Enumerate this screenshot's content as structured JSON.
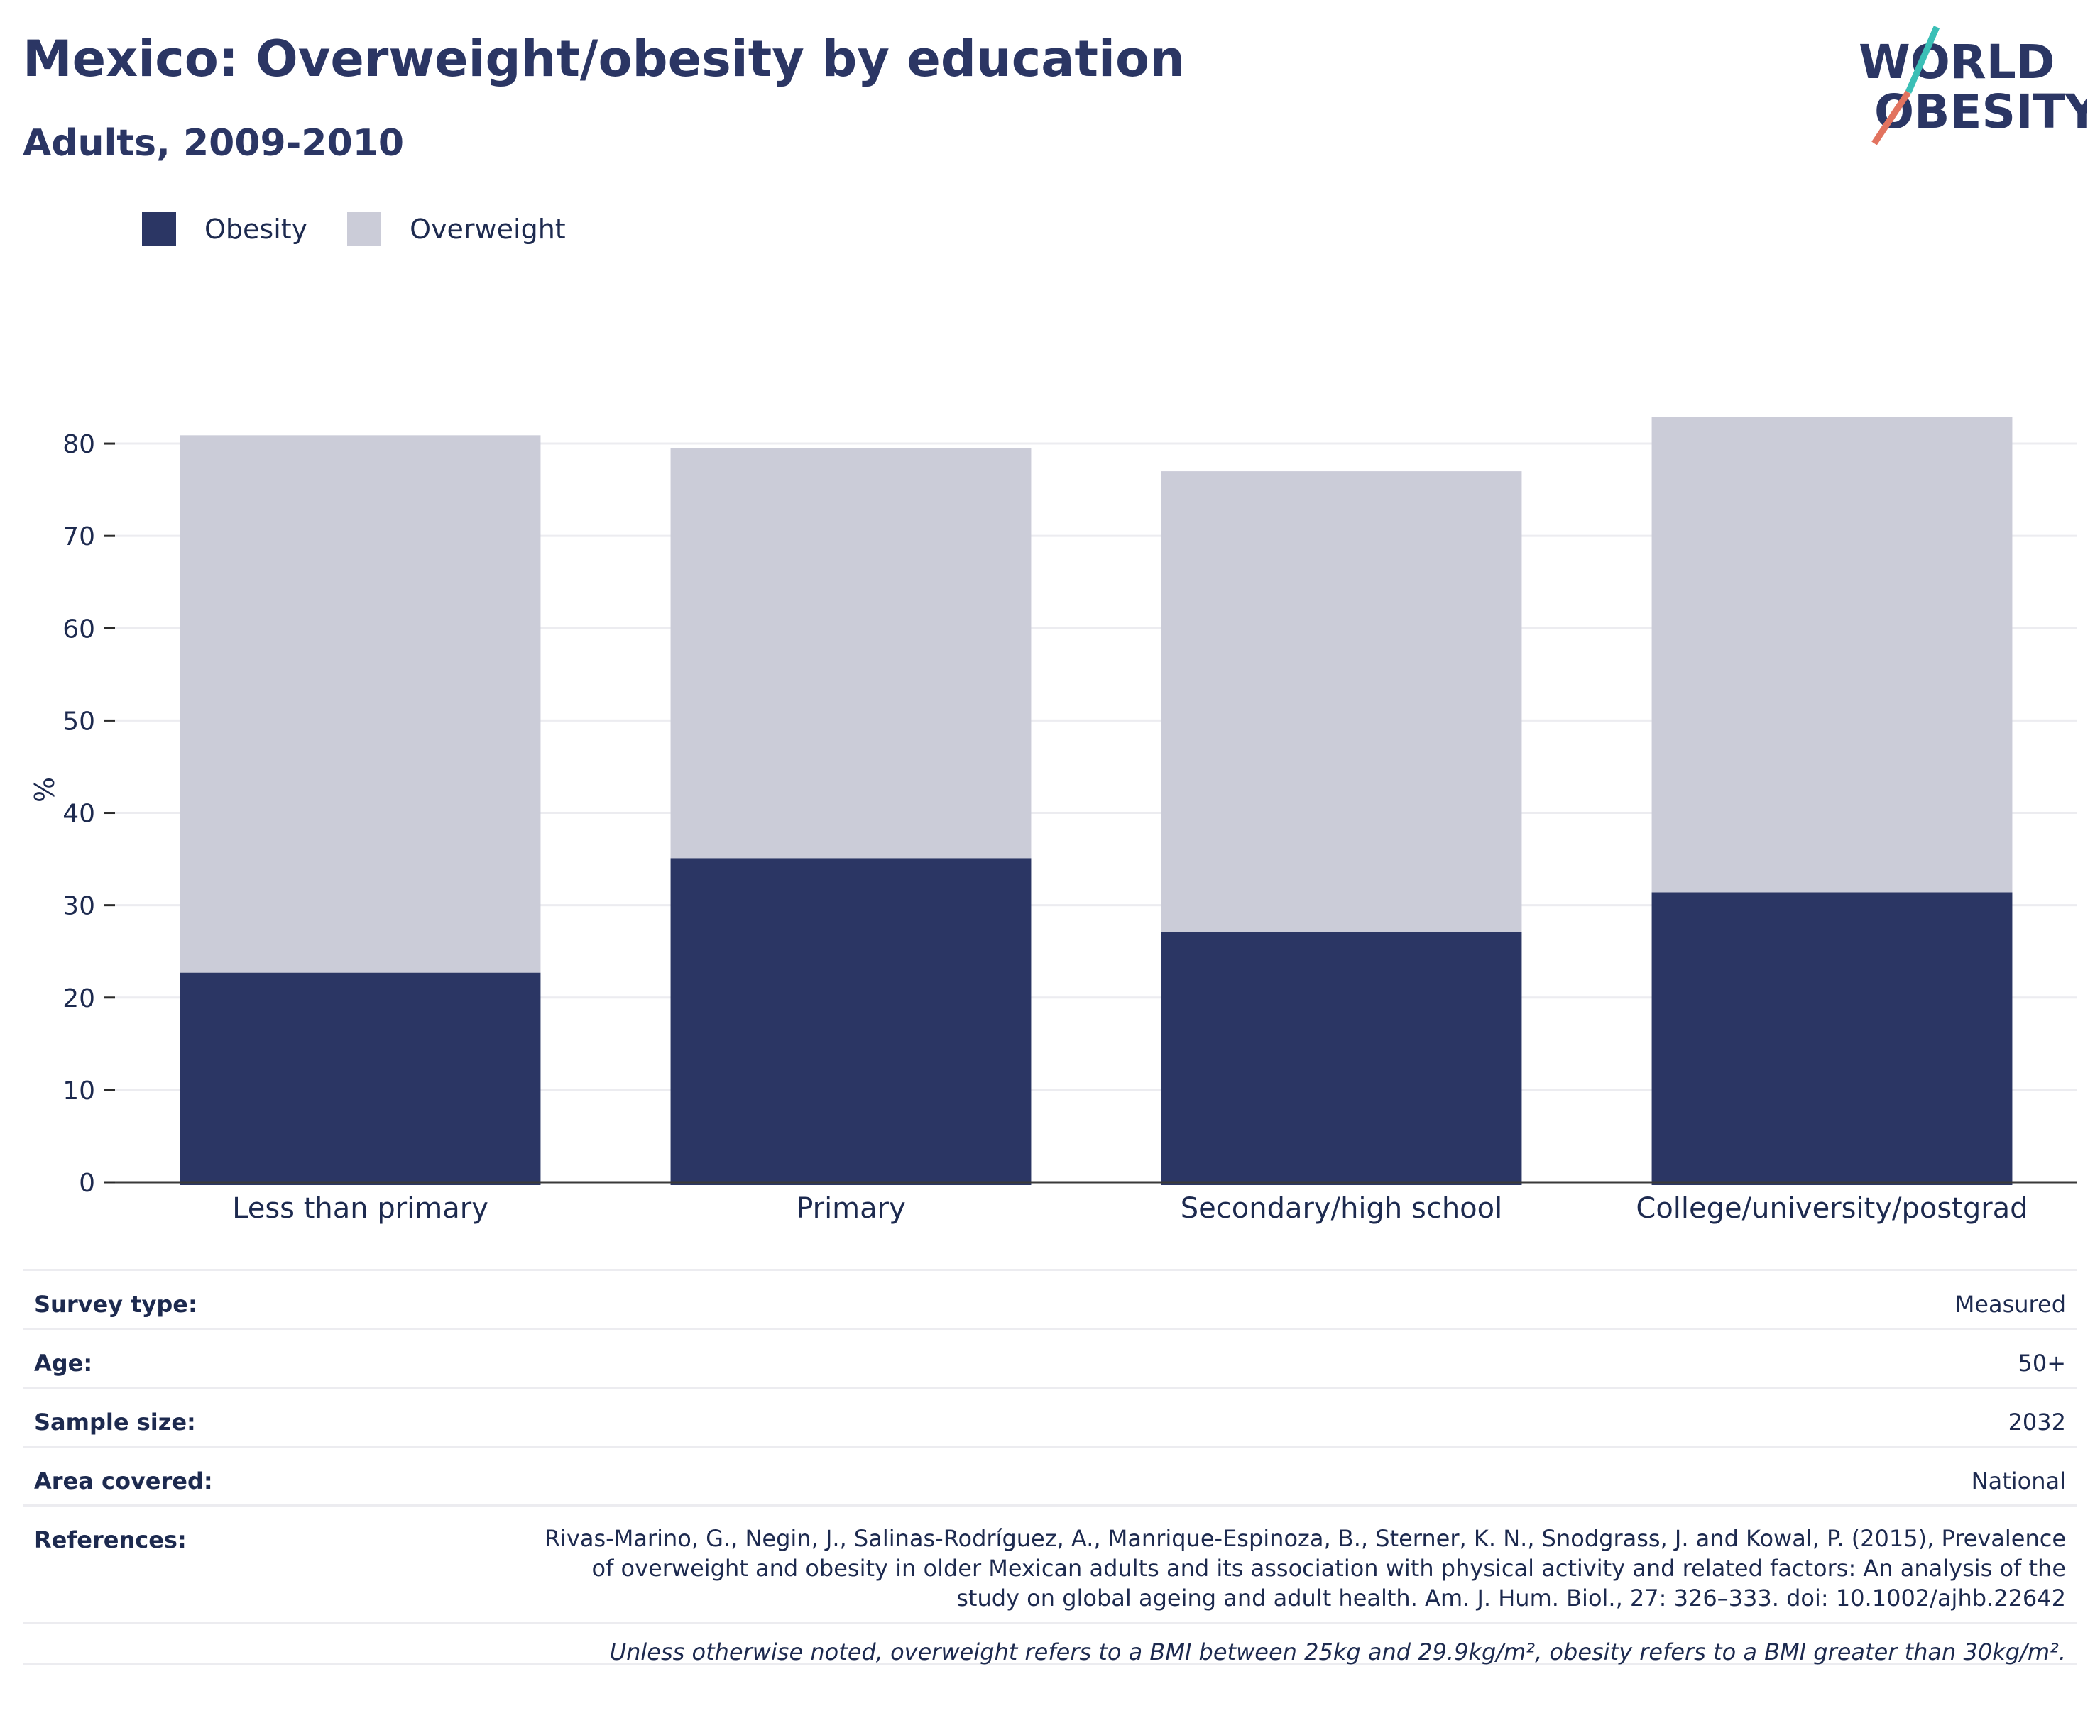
{
  "header": {
    "title": "Mexico: Overweight/obesity by education",
    "subtitle": "Adults, 2009-2010"
  },
  "logo": {
    "line1": "WORLD",
    "line2": "OBESITY"
  },
  "colors": {
    "obesity": "#2b3664",
    "overweight": "#cbccd8",
    "accent_teal": "#3bbfb6",
    "accent_coral": "#e2735f"
  },
  "chart_data": {
    "type": "bar",
    "stacked": true,
    "categories": [
      "Less than primary",
      "Primary",
      "Secondary/high school",
      "College/university/postgrad"
    ],
    "series": [
      {
        "name": "Obesity",
        "values": [
          22.7,
          35.1,
          27.1,
          31.4
        ]
      },
      {
        "name": "Overweight",
        "values": [
          58.2,
          44.4,
          49.9,
          51.5
        ]
      }
    ],
    "ylabel": "%",
    "ylim": [
      0,
      85
    ],
    "yticks": [
      0,
      10,
      20,
      30,
      40,
      50,
      60,
      70,
      80
    ],
    "grid": true,
    "legend_position": "top-left"
  },
  "meta": [
    {
      "key": "Survey type:",
      "value": "Measured"
    },
    {
      "key": "Age:",
      "value": "50+"
    },
    {
      "key": "Sample size:",
      "value": "2032"
    },
    {
      "key": "Area covered:",
      "value": "National"
    },
    {
      "key": "References:",
      "value": "Rivas-Marino, G., Negin, J., Salinas-Rodríguez, A., Manrique-Espinoza, B., Sterner, K. N., Snodgrass, J. and Kowal, P. (2015), Prevalence of overweight and obesity in older Mexican adults and its association with physical activity and related factors: An analysis of the study on global ageing and adult health. Am. J. Hum. Biol., 27: 326–333. doi: 10.1002/ajhb.22642"
    }
  ],
  "note": "Unless otherwise noted, overweight refers to a BMI between 25kg and 29.9kg/m², obesity refers to a BMI greater than 30kg/m²."
}
